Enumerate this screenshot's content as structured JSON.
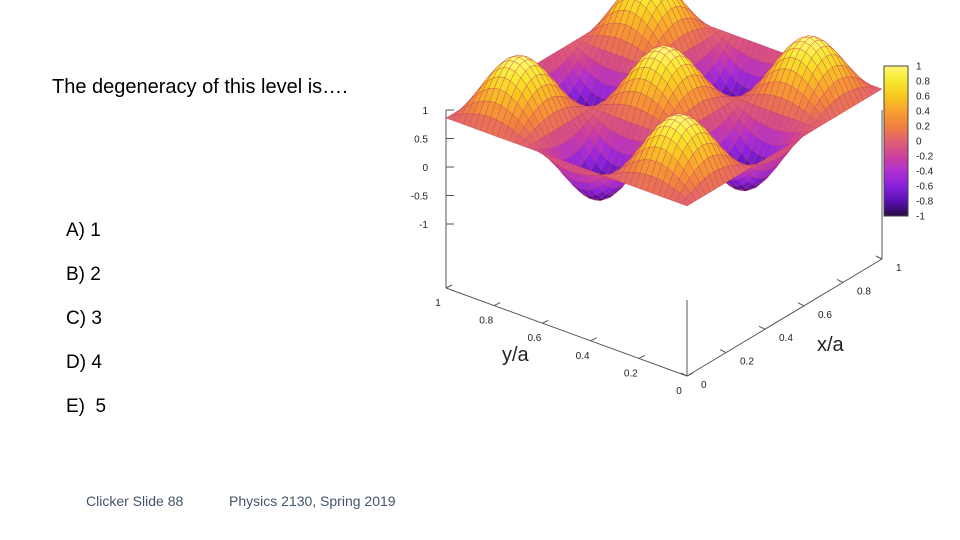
{
  "slide": {
    "question": "The degeneracy of this level is….",
    "answers": [
      "A) 1",
      "B) 2",
      "C) 3",
      "D) 4",
      "E)  5"
    ],
    "footer_left": "Clicker Slide 88",
    "footer_right": "Physics 2130, Spring 2019"
  },
  "chart_data": {
    "type": "surface",
    "function": "sin(3πx/a)·sin(3πy/a)",
    "grid_peaks": [
      [
        1,
        -1,
        1
      ],
      [
        -1,
        1,
        -1
      ],
      [
        1,
        -1,
        1
      ]
    ],
    "zlim": [
      -1,
      1
    ],
    "z_ticks": [
      "1",
      "0.5",
      "0",
      "-0.5",
      "-1"
    ],
    "xlabel": "x/a",
    "ylabel": "y/a",
    "x_ticks": [
      "0",
      "0.2",
      "0.4",
      "0.6",
      "0.8",
      "1"
    ],
    "y_ticks": [
      "1",
      "0.8",
      "0.6",
      "0.4",
      "0.2",
      "0"
    ],
    "colorbar_ticks": [
      "1",
      "0.8",
      "0.6",
      "0.4",
      "0.2",
      "0",
      "-0.2",
      "-0.4",
      "-0.6",
      "-0.8",
      "-1"
    ],
    "colorbar_colors": [
      "#2a0a4a",
      "#5a10b0",
      "#8a20e0",
      "#b030d0",
      "#d0409a",
      "#e06070",
      "#f08040",
      "#f8a030",
      "#f8c820",
      "#f8e830",
      "#fff870"
    ]
  }
}
